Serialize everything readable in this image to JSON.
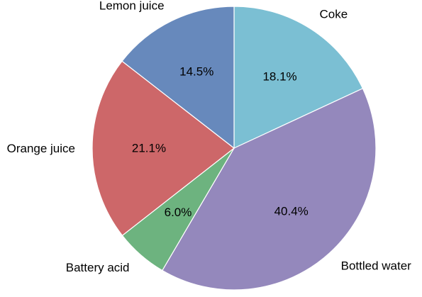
{
  "chart_data": {
    "type": "pie",
    "slices": [
      {
        "label": "Coke",
        "value": 18.1,
        "pct_text": "18.1%",
        "color": "#7bbfd3"
      },
      {
        "label": "Bottled water",
        "value": 40.4,
        "pct_text": "40.4%",
        "color": "#9488bc"
      },
      {
        "label": "Battery acid",
        "value": 6.0,
        "pct_text": "6.0%",
        "color": "#6db37f"
      },
      {
        "label": "Orange juice",
        "value": 21.1,
        "pct_text": "21.1%",
        "color": "#cd6769"
      },
      {
        "label": "Lemon juice",
        "value": 14.5,
        "pct_text": "14.5%",
        "color": "#6789bc"
      }
    ],
    "start_angle": "top (12 o'clock)",
    "direction": "clockwise",
    "slice_edge_color": "#ffffff"
  }
}
